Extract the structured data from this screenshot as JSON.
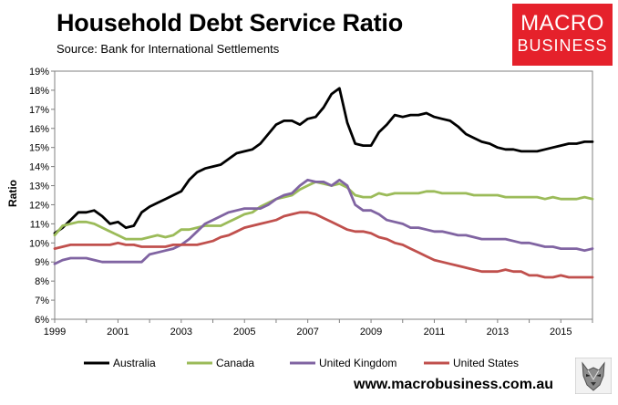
{
  "header": {
    "title": "Household Debt Service Ratio",
    "subtitle": "Source: Bank for International Settlements"
  },
  "logo": {
    "line1": "MACRO",
    "line2": "BUSINESS"
  },
  "footer": {
    "website": "www.macrobusiness.com.au",
    "mascot_icon": "wolf-icon"
  },
  "chart_data": {
    "type": "line",
    "title": "Household Debt Service Ratio",
    "ylabel": "Ratio",
    "xlabel": "",
    "xlim": [
      1999,
      2016
    ],
    "ylim": [
      6,
      19
    ],
    "x_ticks": [
      1999,
      2001,
      2003,
      2005,
      2007,
      2009,
      2011,
      2013,
      2015
    ],
    "x_tick_labels": [
      "1999",
      "2001",
      "2003",
      "2005",
      "2007",
      "2009",
      "2011",
      "2013",
      "2015"
    ],
    "y_ticks": [
      6,
      7,
      8,
      9,
      10,
      11,
      12,
      13,
      14,
      15,
      16,
      17,
      18,
      19
    ],
    "y_tick_labels": [
      "6%",
      "7%",
      "8%",
      "9%",
      "10%",
      "11%",
      "12%",
      "13%",
      "14%",
      "15%",
      "16%",
      "17%",
      "18%",
      "19%"
    ],
    "grid": false,
    "legend_position": "bottom",
    "series": [
      {
        "name": "Australia",
        "color": "#000000",
        "points": [
          [
            1999,
            10.5
          ],
          [
            1999.25,
            10.8
          ],
          [
            1999.5,
            11.2
          ],
          [
            1999.75,
            11.6
          ],
          [
            2000,
            11.6
          ],
          [
            2000.25,
            11.7
          ],
          [
            2000.5,
            11.4
          ],
          [
            2000.75,
            11.0
          ],
          [
            2001,
            11.1
          ],
          [
            2001.25,
            10.8
          ],
          [
            2001.5,
            10.9
          ],
          [
            2001.75,
            11.6
          ],
          [
            2002,
            11.9
          ],
          [
            2002.25,
            12.1
          ],
          [
            2002.5,
            12.3
          ],
          [
            2002.75,
            12.5
          ],
          [
            2003,
            12.7
          ],
          [
            2003.25,
            13.3
          ],
          [
            2003.5,
            13.7
          ],
          [
            2003.75,
            13.9
          ],
          [
            2004,
            14.0
          ],
          [
            2004.25,
            14.1
          ],
          [
            2004.5,
            14.4
          ],
          [
            2004.75,
            14.7
          ],
          [
            2005,
            14.8
          ],
          [
            2005.25,
            14.9
          ],
          [
            2005.5,
            15.2
          ],
          [
            2005.75,
            15.7
          ],
          [
            2006,
            16.2
          ],
          [
            2006.25,
            16.4
          ],
          [
            2006.5,
            16.4
          ],
          [
            2006.75,
            16.2
          ],
          [
            2007,
            16.5
          ],
          [
            2007.25,
            16.6
          ],
          [
            2007.5,
            17.1
          ],
          [
            2007.75,
            17.8
          ],
          [
            2008,
            18.1
          ],
          [
            2008.25,
            16.3
          ],
          [
            2008.5,
            15.2
          ],
          [
            2008.75,
            15.1
          ],
          [
            2009,
            15.1
          ],
          [
            2009.25,
            15.8
          ],
          [
            2009.5,
            16.2
          ],
          [
            2009.75,
            16.7
          ],
          [
            2010,
            16.6
          ],
          [
            2010.25,
            16.7
          ],
          [
            2010.5,
            16.7
          ],
          [
            2010.75,
            16.8
          ],
          [
            2011,
            16.6
          ],
          [
            2011.25,
            16.5
          ],
          [
            2011.5,
            16.4
          ],
          [
            2011.75,
            16.1
          ],
          [
            2012,
            15.7
          ],
          [
            2012.25,
            15.5
          ],
          [
            2012.5,
            15.3
          ],
          [
            2012.75,
            15.2
          ],
          [
            2013,
            15.0
          ],
          [
            2013.25,
            14.9
          ],
          [
            2013.5,
            14.9
          ],
          [
            2013.75,
            14.8
          ],
          [
            2014,
            14.8
          ],
          [
            2014.25,
            14.8
          ],
          [
            2014.5,
            14.9
          ],
          [
            2014.75,
            15.0
          ],
          [
            2015,
            15.1
          ],
          [
            2015.25,
            15.2
          ],
          [
            2015.5,
            15.2
          ],
          [
            2015.75,
            15.3
          ],
          [
            2016,
            15.3
          ]
        ]
      },
      {
        "name": "Canada",
        "color": "#9bbb59",
        "points": [
          [
            1999,
            10.4
          ],
          [
            1999.25,
            10.9
          ],
          [
            1999.5,
            11.0
          ],
          [
            1999.75,
            11.1
          ],
          [
            2000,
            11.1
          ],
          [
            2000.25,
            11.0
          ],
          [
            2000.5,
            10.8
          ],
          [
            2000.75,
            10.6
          ],
          [
            2001,
            10.4
          ],
          [
            2001.25,
            10.2
          ],
          [
            2001.5,
            10.2
          ],
          [
            2001.75,
            10.2
          ],
          [
            2002,
            10.3
          ],
          [
            2002.25,
            10.4
          ],
          [
            2002.5,
            10.3
          ],
          [
            2002.75,
            10.4
          ],
          [
            2003,
            10.7
          ],
          [
            2003.25,
            10.7
          ],
          [
            2003.5,
            10.8
          ],
          [
            2003.75,
            10.9
          ],
          [
            2004,
            10.9
          ],
          [
            2004.25,
            10.9
          ],
          [
            2004.5,
            11.1
          ],
          [
            2004.75,
            11.3
          ],
          [
            2005,
            11.5
          ],
          [
            2005.25,
            11.6
          ],
          [
            2005.5,
            11.9
          ],
          [
            2005.75,
            12.1
          ],
          [
            2006,
            12.3
          ],
          [
            2006.25,
            12.4
          ],
          [
            2006.5,
            12.5
          ],
          [
            2006.75,
            12.8
          ],
          [
            2007,
            13.0
          ],
          [
            2007.25,
            13.2
          ],
          [
            2007.5,
            13.1
          ],
          [
            2007.75,
            13.0
          ],
          [
            2008,
            13.1
          ],
          [
            2008.25,
            12.9
          ],
          [
            2008.5,
            12.5
          ],
          [
            2008.75,
            12.4
          ],
          [
            2009,
            12.4
          ],
          [
            2009.25,
            12.6
          ],
          [
            2009.5,
            12.5
          ],
          [
            2009.75,
            12.6
          ],
          [
            2010,
            12.6
          ],
          [
            2010.25,
            12.6
          ],
          [
            2010.5,
            12.6
          ],
          [
            2010.75,
            12.7
          ],
          [
            2011,
            12.7
          ],
          [
            2011.25,
            12.6
          ],
          [
            2011.5,
            12.6
          ],
          [
            2011.75,
            12.6
          ],
          [
            2012,
            12.6
          ],
          [
            2012.25,
            12.5
          ],
          [
            2012.5,
            12.5
          ],
          [
            2012.75,
            12.5
          ],
          [
            2013,
            12.5
          ],
          [
            2013.25,
            12.4
          ],
          [
            2013.5,
            12.4
          ],
          [
            2013.75,
            12.4
          ],
          [
            2014,
            12.4
          ],
          [
            2014.25,
            12.4
          ],
          [
            2014.5,
            12.3
          ],
          [
            2014.75,
            12.4
          ],
          [
            2015,
            12.3
          ],
          [
            2015.25,
            12.3
          ],
          [
            2015.5,
            12.3
          ],
          [
            2015.75,
            12.4
          ],
          [
            2016,
            12.3
          ]
        ]
      },
      {
        "name": "United Kingdom",
        "color": "#8064a2",
        "points": [
          [
            1999,
            8.9
          ],
          [
            1999.25,
            9.1
          ],
          [
            1999.5,
            9.2
          ],
          [
            1999.75,
            9.2
          ],
          [
            2000,
            9.2
          ],
          [
            2000.25,
            9.1
          ],
          [
            2000.5,
            9.0
          ],
          [
            2000.75,
            9.0
          ],
          [
            2001,
            9.0
          ],
          [
            2001.25,
            9.0
          ],
          [
            2001.5,
            9.0
          ],
          [
            2001.75,
            9.0
          ],
          [
            2002,
            9.4
          ],
          [
            2002.25,
            9.5
          ],
          [
            2002.5,
            9.6
          ],
          [
            2002.75,
            9.7
          ],
          [
            2003,
            9.9
          ],
          [
            2003.25,
            10.2
          ],
          [
            2003.5,
            10.6
          ],
          [
            2003.75,
            11.0
          ],
          [
            2004,
            11.2
          ],
          [
            2004.25,
            11.4
          ],
          [
            2004.5,
            11.6
          ],
          [
            2004.75,
            11.7
          ],
          [
            2005,
            11.8
          ],
          [
            2005.25,
            11.8
          ],
          [
            2005.5,
            11.8
          ],
          [
            2005.75,
            12.0
          ],
          [
            2006,
            12.3
          ],
          [
            2006.25,
            12.5
          ],
          [
            2006.5,
            12.6
          ],
          [
            2006.75,
            13.0
          ],
          [
            2007,
            13.3
          ],
          [
            2007.25,
            13.2
          ],
          [
            2007.5,
            13.2
          ],
          [
            2007.75,
            13.0
          ],
          [
            2008,
            13.3
          ],
          [
            2008.25,
            13.0
          ],
          [
            2008.5,
            12.0
          ],
          [
            2008.75,
            11.7
          ],
          [
            2009,
            11.7
          ],
          [
            2009.25,
            11.5
          ],
          [
            2009.5,
            11.2
          ],
          [
            2009.75,
            11.1
          ],
          [
            2010,
            11.0
          ],
          [
            2010.25,
            10.8
          ],
          [
            2010.5,
            10.8
          ],
          [
            2010.75,
            10.7
          ],
          [
            2011,
            10.6
          ],
          [
            2011.25,
            10.6
          ],
          [
            2011.5,
            10.5
          ],
          [
            2011.75,
            10.4
          ],
          [
            2012,
            10.4
          ],
          [
            2012.25,
            10.3
          ],
          [
            2012.5,
            10.2
          ],
          [
            2012.75,
            10.2
          ],
          [
            2013,
            10.2
          ],
          [
            2013.25,
            10.2
          ],
          [
            2013.5,
            10.1
          ],
          [
            2013.75,
            10.0
          ],
          [
            2014,
            10.0
          ],
          [
            2014.25,
            9.9
          ],
          [
            2014.5,
            9.8
          ],
          [
            2014.75,
            9.8
          ],
          [
            2015,
            9.7
          ],
          [
            2015.25,
            9.7
          ],
          [
            2015.5,
            9.7
          ],
          [
            2015.75,
            9.6
          ],
          [
            2016,
            9.7
          ]
        ]
      },
      {
        "name": "United States",
        "color": "#c0504d",
        "points": [
          [
            1999,
            9.7
          ],
          [
            1999.25,
            9.8
          ],
          [
            1999.5,
            9.9
          ],
          [
            1999.75,
            9.9
          ],
          [
            2000,
            9.9
          ],
          [
            2000.25,
            9.9
          ],
          [
            2000.5,
            9.9
          ],
          [
            2000.75,
            9.9
          ],
          [
            2001,
            10.0
          ],
          [
            2001.25,
            9.9
          ],
          [
            2001.5,
            9.9
          ],
          [
            2001.75,
            9.8
          ],
          [
            2002,
            9.8
          ],
          [
            2002.25,
            9.8
          ],
          [
            2002.5,
            9.8
          ],
          [
            2002.75,
            9.9
          ],
          [
            2003,
            9.9
          ],
          [
            2003.25,
            9.9
          ],
          [
            2003.5,
            9.9
          ],
          [
            2003.75,
            10.0
          ],
          [
            2004,
            10.1
          ],
          [
            2004.25,
            10.3
          ],
          [
            2004.5,
            10.4
          ],
          [
            2004.75,
            10.6
          ],
          [
            2005,
            10.8
          ],
          [
            2005.25,
            10.9
          ],
          [
            2005.5,
            11.0
          ],
          [
            2005.75,
            11.1
          ],
          [
            2006,
            11.2
          ],
          [
            2006.25,
            11.4
          ],
          [
            2006.5,
            11.5
          ],
          [
            2006.75,
            11.6
          ],
          [
            2007,
            11.6
          ],
          [
            2007.25,
            11.5
          ],
          [
            2007.5,
            11.3
          ],
          [
            2007.75,
            11.1
          ],
          [
            2008,
            10.9
          ],
          [
            2008.25,
            10.7
          ],
          [
            2008.5,
            10.6
          ],
          [
            2008.75,
            10.6
          ],
          [
            2009,
            10.5
          ],
          [
            2009.25,
            10.3
          ],
          [
            2009.5,
            10.2
          ],
          [
            2009.75,
            10.0
          ],
          [
            2010,
            9.9
          ],
          [
            2010.25,
            9.7
          ],
          [
            2010.5,
            9.5
          ],
          [
            2010.75,
            9.3
          ],
          [
            2011,
            9.1
          ],
          [
            2011.25,
            9.0
          ],
          [
            2011.5,
            8.9
          ],
          [
            2011.75,
            8.8
          ],
          [
            2012,
            8.7
          ],
          [
            2012.25,
            8.6
          ],
          [
            2012.5,
            8.5
          ],
          [
            2012.75,
            8.5
          ],
          [
            2013,
            8.5
          ],
          [
            2013.25,
            8.6
          ],
          [
            2013.5,
            8.5
          ],
          [
            2013.75,
            8.5
          ],
          [
            2014,
            8.3
          ],
          [
            2014.25,
            8.3
          ],
          [
            2014.5,
            8.2
          ],
          [
            2014.75,
            8.2
          ],
          [
            2015,
            8.3
          ],
          [
            2015.25,
            8.2
          ],
          [
            2015.5,
            8.2
          ],
          [
            2015.75,
            8.2
          ],
          [
            2016,
            8.2
          ]
        ]
      }
    ]
  }
}
